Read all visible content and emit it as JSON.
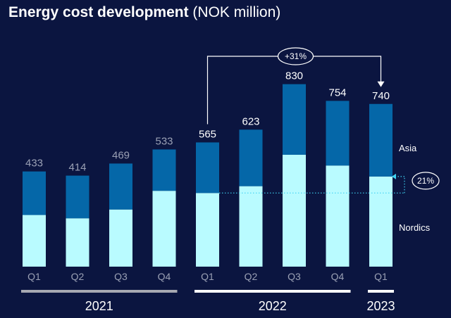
{
  "title": "Energy cost development",
  "subtitle": "(NOK million)",
  "colors": {
    "background": "#0b1540",
    "asia": "#0567a8",
    "nordics": "#b9fbff",
    "muted_text": "#9aa0b4",
    "bright_text": "#ffffff",
    "bar_2021": "#a7a9b2",
    "bar_2022": "#ffffff",
    "dotted": "#3fd3f2"
  },
  "chart_data": {
    "type": "bar",
    "stacked": true,
    "categories": [
      "Q1",
      "Q2",
      "Q3",
      "Q4",
      "Q1",
      "Q2",
      "Q3",
      "Q4",
      "Q1"
    ],
    "totals": [
      433,
      414,
      469,
      533,
      565,
      623,
      830,
      754,
      740
    ],
    "series": [
      {
        "name": "Nordics",
        "values": [
          235,
          220,
          260,
          345,
          335,
          366,
          509,
          460,
          410
        ]
      },
      {
        "name": "Asia",
        "values": [
          198,
          194,
          209,
          188,
          230,
          257,
          321,
          294,
          330
        ]
      }
    ],
    "years": [
      {
        "label": "2021",
        "from": 0,
        "to": 3
      },
      {
        "label": "2022",
        "from": 4,
        "to": 7
      },
      {
        "label": "2023",
        "from": 8,
        "to": 8
      }
    ],
    "ylim": [
      0,
      1000
    ],
    "grid": false,
    "legend": "right",
    "annotations": [
      {
        "text": "+31%",
        "from_index": 4,
        "to_index": 8
      },
      {
        "text": "21%",
        "from_index": 4,
        "to_index": 8
      }
    ]
  }
}
